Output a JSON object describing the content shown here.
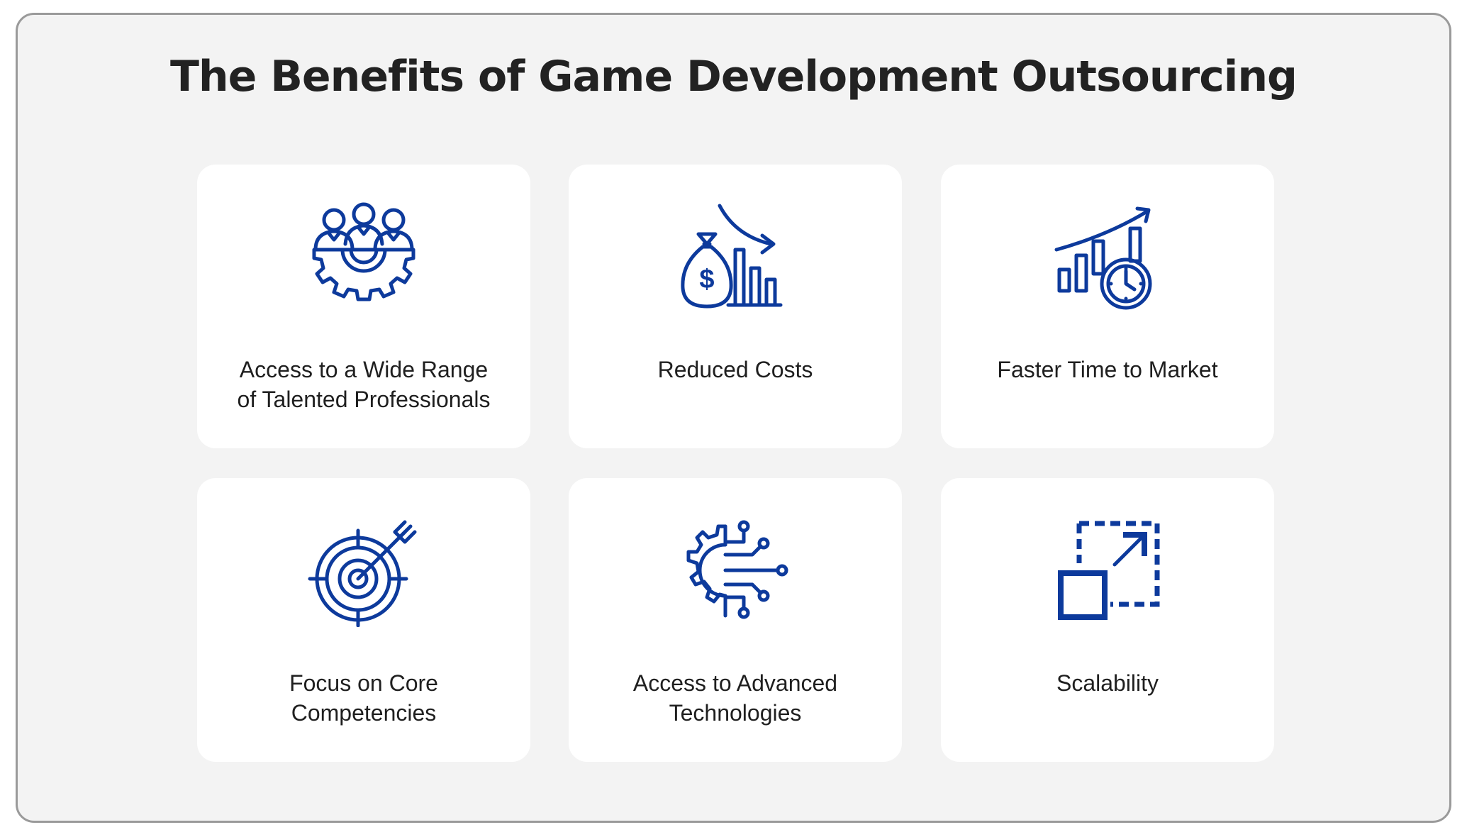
{
  "title": "The Benefits of Game Development Outsourcing",
  "accent_color": "#0d3a9c",
  "cards": [
    {
      "label_line1": "Access to a Wide Range",
      "label_line2": "of Talented Professionals",
      "icon": "team-gear-icon"
    },
    {
      "label_line1": "Reduced Costs",
      "label_line2": "",
      "icon": "money-bag-decline-icon"
    },
    {
      "label_line1": "Faster Time to Market",
      "label_line2": "",
      "icon": "growth-chart-clock-icon"
    },
    {
      "label_line1": "Focus on Core",
      "label_line2": "Competencies",
      "icon": "target-arrow-icon"
    },
    {
      "label_line1": "Access to Advanced",
      "label_line2": "Technologies",
      "icon": "tech-gear-circuit-icon"
    },
    {
      "label_line1": "Scalability",
      "label_line2": "",
      "icon": "scale-up-icon"
    }
  ]
}
